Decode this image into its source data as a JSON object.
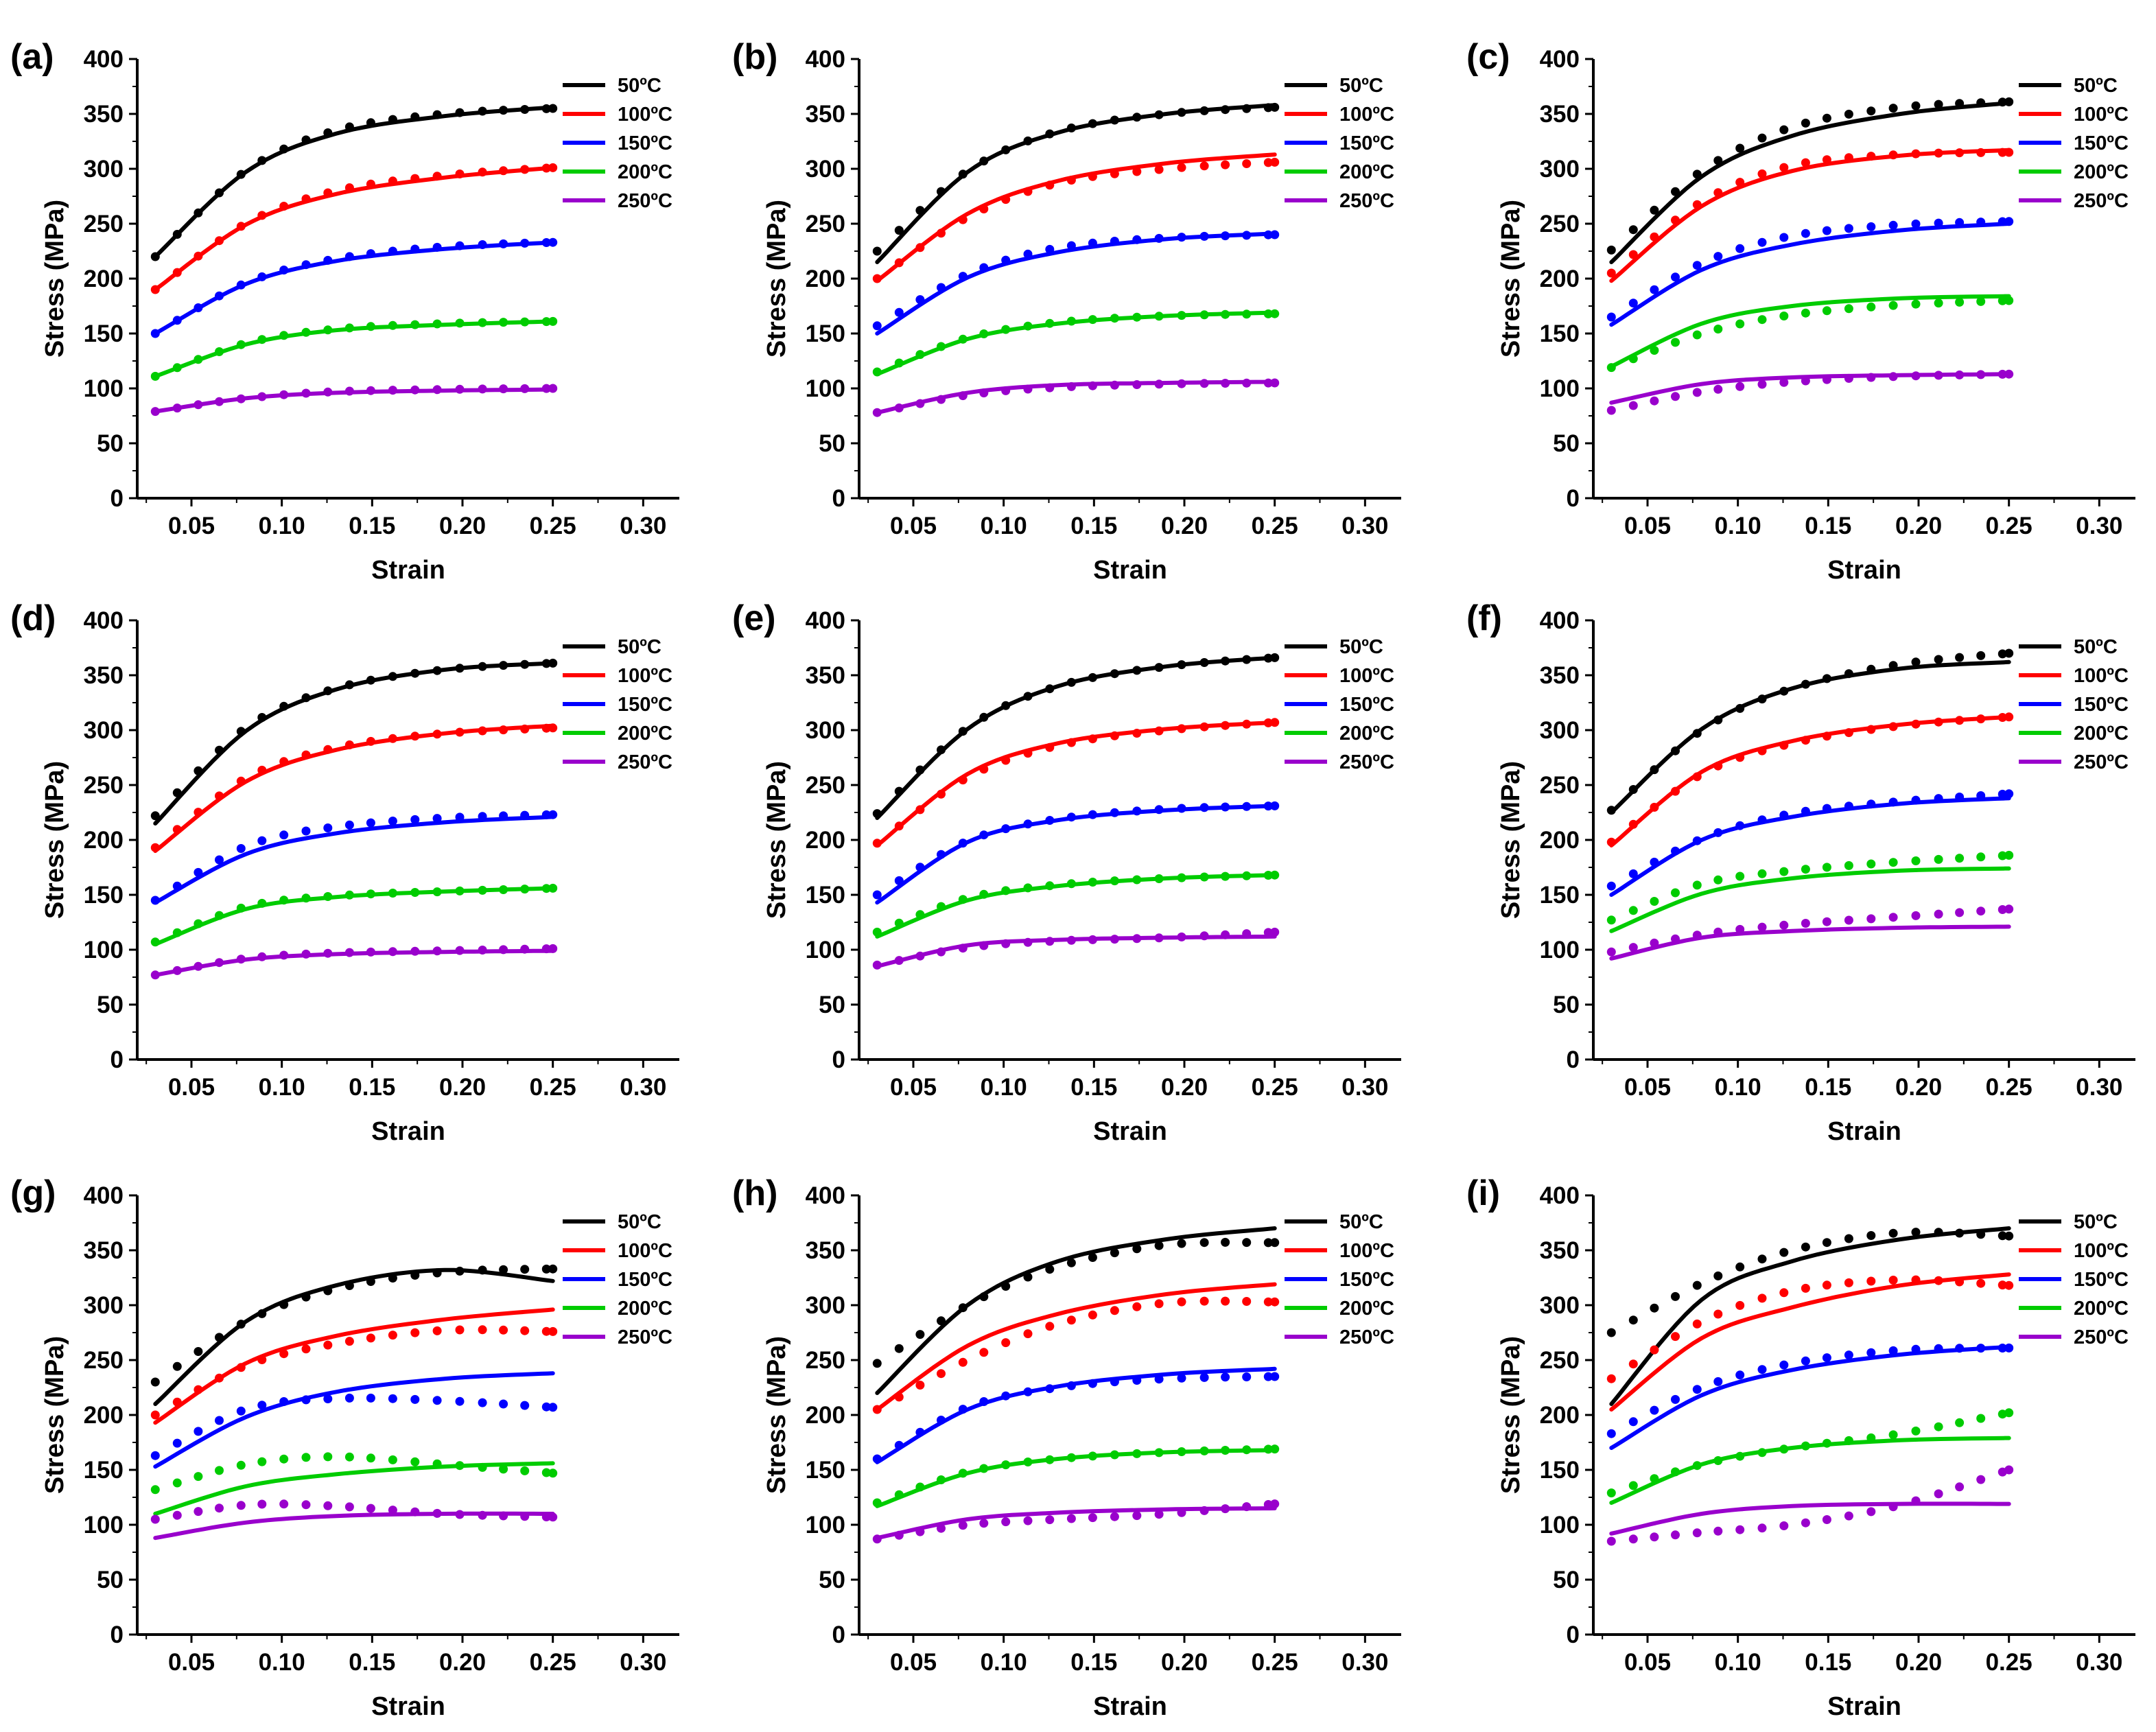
{
  "figure": {
    "temperature_unit": "ºC"
  },
  "chart_data": [
    {
      "panel": "(a)",
      "type": "line",
      "xlabel": "Strain",
      "ylabel": "Stress (MPa)",
      "xlim": [
        0.02,
        0.32
      ],
      "ylim": [
        0,
        400
      ],
      "xticks": [
        "0.05",
        "0.10",
        "0.15",
        "0.20",
        "0.25",
        "0.30"
      ],
      "yticks": [
        "0",
        "50",
        "100",
        "150",
        "200",
        "250",
        "300",
        "350",
        "400"
      ],
      "legend_position": "top-right",
      "series": [
        {
          "name": "50ºC",
          "color": "#000000",
          "fit": [
            220,
            297,
            332,
            348,
            356
          ],
          "exp": [
            220,
            298,
            335,
            350,
            355
          ]
        },
        {
          "name": "100ºC",
          "color": "#ff0000",
          "fit": [
            190,
            249,
            277,
            292,
            301
          ],
          "exp": [
            190,
            250,
            280,
            294,
            301
          ]
        },
        {
          "name": "150ºC",
          "color": "#0000ff",
          "fit": [
            150,
            195,
            216,
            227,
            233
          ],
          "exp": [
            150,
            196,
            218,
            229,
            233
          ]
        },
        {
          "name": "200ºC",
          "color": "#00cc00",
          "fit": [
            111,
            140,
            153,
            158,
            161
          ],
          "exp": [
            111,
            141,
            154,
            159,
            161
          ]
        },
        {
          "name": "250ºC",
          "color": "#9900cc",
          "fit": [
            79,
            91,
            96,
            98,
            99
          ],
          "exp": [
            79,
            91,
            97,
            99,
            100
          ]
        }
      ]
    },
    {
      "panel": "(b)",
      "type": "line",
      "xlabel": "Strain",
      "ylabel": "Stress (MPa)",
      "xlim": [
        0.02,
        0.32
      ],
      "ylim": [
        0,
        400
      ],
      "xticks": [
        "0.05",
        "0.10",
        "0.15",
        "0.20",
        "0.25",
        "0.30"
      ],
      "yticks": [
        "0",
        "50",
        "100",
        "150",
        "200",
        "250",
        "300",
        "350",
        "400"
      ],
      "legend_position": "top-right",
      "series": [
        {
          "name": "50ºC",
          "color": "#000000",
          "fit": [
            215,
            297,
            333,
            350,
            358
          ],
          "exp": [
            225,
            298,
            334,
            350,
            356
          ]
        },
        {
          "name": "100ºC",
          "color": "#ff0000",
          "fit": [
            198,
            259,
            289,
            305,
            313
          ],
          "exp": [
            200,
            256,
            287,
            300,
            306
          ]
        },
        {
          "name": "150ºC",
          "color": "#0000ff",
          "fit": [
            150,
            201,
            224,
            236,
            241
          ],
          "exp": [
            157,
            204,
            228,
            237,
            240
          ]
        },
        {
          "name": "200ºC",
          "color": "#00cc00",
          "fit": [
            113,
            145,
            159,
            166,
            169
          ],
          "exp": [
            115,
            146,
            160,
            166,
            168
          ]
        },
        {
          "name": "250ºC",
          "color": "#9900cc",
          "fit": [
            78,
            96,
            103,
            105,
            106
          ],
          "exp": [
            78,
            94,
            101,
            104,
            105
          ]
        }
      ]
    },
    {
      "panel": "(c)",
      "type": "line",
      "xlabel": "Strain",
      "ylabel": "Stress (MPa)",
      "xlim": [
        0.02,
        0.32
      ],
      "ylim": [
        0,
        400
      ],
      "xticks": [
        "0.05",
        "0.10",
        "0.15",
        "0.20",
        "0.25",
        "0.30"
      ],
      "yticks": [
        "0",
        "50",
        "100",
        "150",
        "200",
        "250",
        "300",
        "350",
        "400"
      ],
      "legend_position": "top-right",
      "series": [
        {
          "name": "50ºC",
          "color": "#000000",
          "fit": [
            215,
            293,
            330,
            350,
            360
          ],
          "exp": [
            226,
            298,
            338,
            356,
            361
          ]
        },
        {
          "name": "100ºC",
          "color": "#ff0000",
          "fit": [
            198,
            266,
            298,
            312,
            317
          ],
          "exp": [
            205,
            270,
            303,
            313,
            315
          ]
        },
        {
          "name": "150ºC",
          "color": "#0000ff",
          "fit": [
            158,
            208,
            231,
            244,
            250
          ],
          "exp": [
            165,
            214,
            239,
            249,
            252
          ]
        },
        {
          "name": "200ºC",
          "color": "#00cc00",
          "fit": [
            120,
            159,
            175,
            182,
            184
          ],
          "exp": [
            119,
            150,
            167,
            176,
            180
          ]
        },
        {
          "name": "250ºC",
          "color": "#9900cc",
          "fit": [
            87,
            104,
            110,
            112,
            113
          ],
          "exp": [
            80,
            97,
            106,
            111,
            113
          ]
        }
      ]
    },
    {
      "panel": "(d)",
      "type": "line",
      "xlabel": "Strain",
      "ylabel": "Stress (MPa)",
      "xlim": [
        0.02,
        0.32
      ],
      "ylim": [
        0,
        400
      ],
      "xticks": [
        "0.05",
        "0.10",
        "0.15",
        "0.20",
        "0.25",
        "0.30"
      ],
      "yticks": [
        "0",
        "50",
        "100",
        "150",
        "200",
        "250",
        "300",
        "350",
        "400"
      ],
      "legend_position": "top-right",
      "series": [
        {
          "name": "50ºC",
          "color": "#000000",
          "fit": [
            215,
            299,
            337,
            355,
            361
          ],
          "exp": [
            222,
            302,
            338,
            355,
            361
          ]
        },
        {
          "name": "100ºC",
          "color": "#ff0000",
          "fit": [
            190,
            253,
            282,
            297,
            304
          ],
          "exp": [
            193,
            256,
            284,
            297,
            302
          ]
        },
        {
          "name": "150ºC",
          "color": "#0000ff",
          "fit": [
            143,
            187,
            206,
            216,
            221
          ],
          "exp": [
            145,
            194,
            212,
            220,
            223
          ]
        },
        {
          "name": "200ºC",
          "color": "#00cc00",
          "fit": [
            105,
            137,
            148,
            153,
            156
          ],
          "exp": [
            107,
            139,
            149,
            153,
            156
          ]
        },
        {
          "name": "250ºC",
          "color": "#9900cc",
          "fit": [
            77,
            91,
            96,
            98,
            99
          ],
          "exp": [
            77,
            92,
            97,
            99,
            101
          ]
        }
      ]
    },
    {
      "panel": "(e)",
      "type": "line",
      "xlabel": "Strain",
      "ylabel": "Stress (MPa)",
      "xlim": [
        0.02,
        0.32
      ],
      "ylim": [
        0,
        400
      ],
      "xticks": [
        "0.05",
        "0.10",
        "0.15",
        "0.20",
        "0.25",
        "0.30"
      ],
      "yticks": [
        "0",
        "50",
        "100",
        "150",
        "200",
        "250",
        "300",
        "350",
        "400"
      ],
      "legend_position": "top-right",
      "series": [
        {
          "name": "50ºC",
          "color": "#000000",
          "fit": [
            220,
            301,
            340,
            358,
            366
          ],
          "exp": [
            224,
            302,
            340,
            358,
            366
          ]
        },
        {
          "name": "100ºC",
          "color": "#ff0000",
          "fit": [
            195,
            260,
            288,
            301,
            307
          ],
          "exp": [
            197,
            257,
            286,
            300,
            307
          ]
        },
        {
          "name": "150ºC",
          "color": "#0000ff",
          "fit": [
            143,
            198,
            218,
            227,
            231
          ],
          "exp": [
            150,
            199,
            219,
            228,
            231
          ]
        },
        {
          "name": "200ºC",
          "color": "#00cc00",
          "fit": [
            112,
            145,
            158,
            165,
            168
          ],
          "exp": [
            116,
            147,
            159,
            165,
            168
          ]
        },
        {
          "name": "250ºC",
          "color": "#9900cc",
          "fit": [
            85,
            104,
            109,
            111,
            112
          ],
          "exp": [
            86,
            102,
            108,
            111,
            116
          ]
        }
      ]
    },
    {
      "panel": "(f)",
      "type": "line",
      "xlabel": "Strain",
      "ylabel": "Stress (MPa)",
      "xlim": [
        0.02,
        0.32
      ],
      "ylim": [
        0,
        400
      ],
      "xticks": [
        "0.05",
        "0.10",
        "0.15",
        "0.20",
        "0.25",
        "0.30"
      ],
      "yticks": [
        "0",
        "50",
        "100",
        "150",
        "200",
        "250",
        "300",
        "350",
        "400"
      ],
      "legend_position": "top-right",
      "series": [
        {
          "name": "50ºC",
          "color": "#000000",
          "fit": [
            225,
            301,
            338,
            356,
            362
          ],
          "exp": [
            227,
            300,
            338,
            360,
            370
          ]
        },
        {
          "name": "100ºC",
          "color": "#ff0000",
          "fit": [
            195,
            262,
            290,
            305,
            312
          ],
          "exp": [
            198,
            260,
            288,
            304,
            312
          ]
        },
        {
          "name": "150ºC",
          "color": "#0000ff",
          "fit": [
            150,
            200,
            221,
            233,
            238
          ],
          "exp": [
            158,
            201,
            224,
            235,
            242
          ]
        },
        {
          "name": "200ºC",
          "color": "#00cc00",
          "fit": [
            117,
            151,
            165,
            172,
            174
          ],
          "exp": [
            127,
            160,
            172,
            180,
            186
          ]
        },
        {
          "name": "250ºC",
          "color": "#9900cc",
          "fit": [
            92,
            111,
            117,
            120,
            121
          ],
          "exp": [
            98,
            114,
            123,
            130,
            137
          ]
        }
      ]
    },
    {
      "panel": "(g)",
      "type": "line",
      "xlabel": "Strain",
      "ylabel": "Stress (MPa)",
      "xlim": [
        0.02,
        0.32
      ],
      "ylim": [
        0,
        400
      ],
      "xticks": [
        "0.05",
        "0.10",
        "0.15",
        "0.20",
        "0.25",
        "0.30"
      ],
      "yticks": [
        "0",
        "50",
        "100",
        "150",
        "200",
        "250",
        "300",
        "350",
        "400"
      ],
      "legend_position": "top-right",
      "series": [
        {
          "name": "50ºC",
          "color": "#000000",
          "fit": [
            210,
            285,
            318,
            332,
            322
          ],
          "exp": [
            230,
            285,
            315,
            330,
            333
          ]
        },
        {
          "name": "100ºC",
          "color": "#ff0000",
          "fit": [
            193,
            247,
            272,
            287,
            296
          ],
          "exp": [
            200,
            245,
            265,
            277,
            276
          ]
        },
        {
          "name": "150ºC",
          "color": "#0000ff",
          "fit": [
            153,
            198,
            221,
            233,
            238
          ],
          "exp": [
            163,
            205,
            215,
            213,
            207
          ]
        },
        {
          "name": "200ºC",
          "color": "#00cc00",
          "fit": [
            110,
            135,
            146,
            153,
            156
          ],
          "exp": [
            132,
            155,
            162,
            155,
            147
          ]
        },
        {
          "name": "250ºC",
          "color": "#9900cc",
          "fit": [
            88,
            102,
            108,
            110,
            110
          ],
          "exp": [
            105,
            118,
            117,
            110,
            107
          ]
        }
      ]
    },
    {
      "panel": "(h)",
      "type": "line",
      "xlabel": "Strain",
      "ylabel": "Stress (MPa)",
      "xlim": [
        0.02,
        0.32
      ],
      "ylim": [
        0,
        400
      ],
      "xticks": [
        "0.05",
        "0.10",
        "0.15",
        "0.20",
        "0.25",
        "0.30"
      ],
      "yticks": [
        "0",
        "50",
        "100",
        "150",
        "200",
        "250",
        "300",
        "350",
        "400"
      ],
      "legend_position": "top-right",
      "series": [
        {
          "name": "50ºC",
          "color": "#000000",
          "fit": [
            220,
            300,
            340,
            360,
            370
          ],
          "exp": [
            247,
            300,
            335,
            355,
            357
          ]
        },
        {
          "name": "100ºC",
          "color": "#ff0000",
          "fit": [
            205,
            263,
            292,
            310,
            319
          ],
          "exp": [
            205,
            250,
            283,
            302,
            303
          ]
        },
        {
          "name": "150ºC",
          "color": "#0000ff",
          "fit": [
            157,
            205,
            226,
            237,
            242
          ],
          "exp": [
            160,
            207,
            225,
            233,
            235
          ]
        },
        {
          "name": "200ºC",
          "color": "#00cc00",
          "fit": [
            117,
            147,
            160,
            166,
            168
          ],
          "exp": [
            120,
            148,
            160,
            166,
            169
          ]
        },
        {
          "name": "250ºC",
          "color": "#9900cc",
          "fit": [
            88,
            105,
            111,
            114,
            115
          ],
          "exp": [
            87,
            100,
            105,
            110,
            119
          ]
        }
      ]
    },
    {
      "panel": "(i)",
      "type": "line",
      "xlabel": "Strain",
      "ylabel": "Stress (MPa)",
      "xlim": [
        0.02,
        0.32
      ],
      "ylim": [
        0,
        400
      ],
      "xticks": [
        "0.05",
        "0.10",
        "0.15",
        "0.20",
        "0.25",
        "0.30"
      ],
      "yticks": [
        "0",
        "50",
        "100",
        "150",
        "200",
        "250",
        "300",
        "350",
        "400"
      ],
      "legend_position": "top-right",
      "series": [
        {
          "name": "50ºC",
          "color": "#000000",
          "fit": [
            210,
            305,
            340,
            360,
            370
          ],
          "exp": [
            275,
            320,
            350,
            366,
            363
          ]
        },
        {
          "name": "100ºC",
          "color": "#ff0000",
          "fit": [
            205,
            270,
            298,
            318,
            328
          ],
          "exp": [
            233,
            285,
            313,
            323,
            318
          ]
        },
        {
          "name": "150ºC",
          "color": "#0000ff",
          "fit": [
            170,
            218,
            241,
            255,
            262
          ],
          "exp": [
            183,
            225,
            247,
            259,
            261
          ]
        },
        {
          "name": "200ºC",
          "color": "#00cc00",
          "fit": [
            120,
            155,
            170,
            177,
            179
          ],
          "exp": [
            129,
            155,
            170,
            183,
            202
          ]
        },
        {
          "name": "250ºC",
          "color": "#9900cc",
          "fit": [
            92,
            110,
            117,
            119,
            119
          ],
          "exp": [
            85,
            93,
            100,
            118,
            150
          ]
        }
      ]
    }
  ]
}
